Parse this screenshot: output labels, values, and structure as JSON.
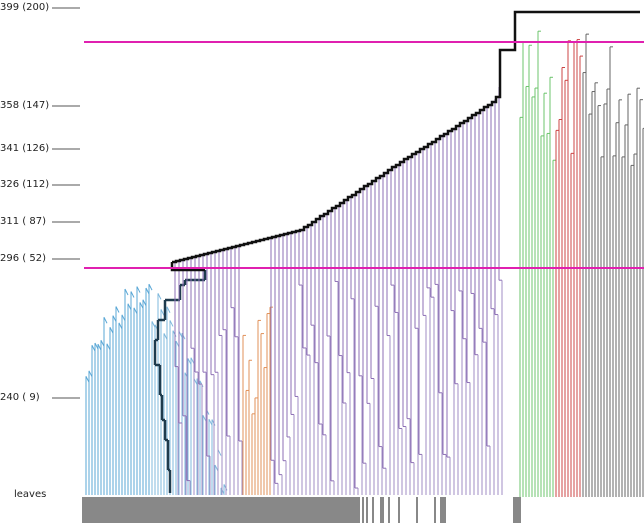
{
  "axis_labels": [
    "399 (200)",
    "358 (147)",
    "341 (126)",
    "326 (112)",
    "311 ( 87)",
    "296 ( 52)",
    "240 (  9)"
  ],
  "leaves_label": "leaves"
}
